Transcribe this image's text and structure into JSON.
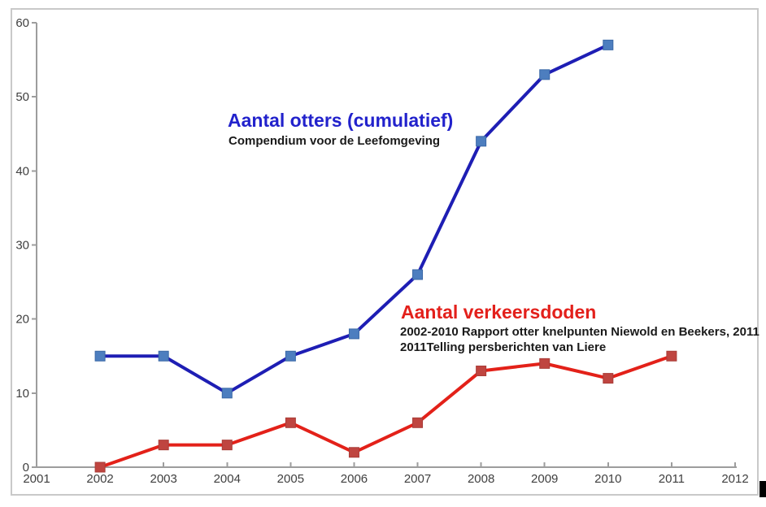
{
  "chart_data": {
    "type": "line",
    "title": "",
    "xlabel": "",
    "ylabel": "",
    "xlim": [
      2001,
      2012
    ],
    "ylim": [
      0,
      60
    ],
    "x_ticks": [
      2001,
      2002,
      2003,
      2004,
      2005,
      2006,
      2007,
      2008,
      2009,
      2010,
      2011,
      2012
    ],
    "y_ticks": [
      0,
      10,
      20,
      30,
      40,
      50,
      60
    ],
    "grid": false,
    "legend_position": "inline-annotations",
    "series": [
      {
        "name": "Aantal otters (cumulatief)",
        "x": [
          2002,
          2003,
          2004,
          2005,
          2006,
          2007,
          2008,
          2009,
          2010
        ],
        "values": [
          15,
          15,
          10,
          15,
          18,
          26,
          44,
          53,
          57
        ],
        "line_color": "#1e1eb4",
        "marker_color": "#4d7ebf",
        "marker_edge": "#3a68a6",
        "marker_shape": "square"
      },
      {
        "name": "Aantal verkeersdoden",
        "x": [
          2002,
          2003,
          2004,
          2005,
          2006,
          2007,
          2008,
          2009,
          2010,
          2011
        ],
        "values": [
          0,
          3,
          3,
          6,
          2,
          6,
          13,
          14,
          12,
          15
        ],
        "line_color": "#e32119",
        "marker_color": "#bf4540",
        "marker_edge": "#a93c37",
        "marker_shape": "square"
      }
    ]
  },
  "annotations": {
    "otters_title": "Aantal otters (cumulatief)",
    "otters_subtitle": "Compendium voor de Leefomgeving",
    "verkeersdoden_title": "Aantal verkeersdoden",
    "verkeersdoden_source_line1": "2002-2010 Rapport otter knelpunten Niewold en Beekers, 2011",
    "verkeersdoden_source_line2": "2011Telling persberichten van Liere"
  },
  "colors": {
    "otters_title_blue": "#2222cc",
    "verkeersdoden_title_red": "#e3201b",
    "source_text_black": "#1a1a1a",
    "axis_gray": "#9d9d9d",
    "tick_label_gray": "#3f3f3f",
    "frame_gray": "#c9c9c9"
  }
}
